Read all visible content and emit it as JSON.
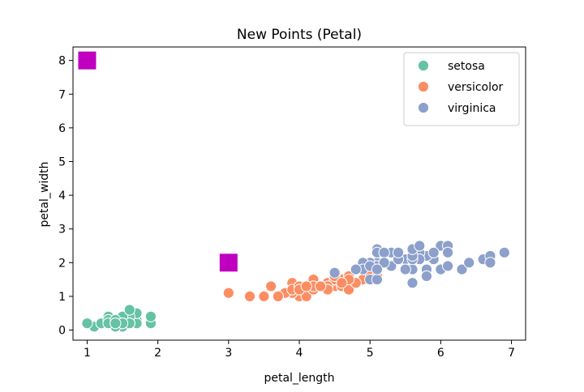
{
  "chart_data": {
    "type": "scatter",
    "title": "New Points (Petal)",
    "xlabel": "petal_length",
    "ylabel": "petal_width",
    "xlim": [
      0.8,
      7.2
    ],
    "ylim": [
      -0.3,
      8.4
    ],
    "xticks": [
      1,
      2,
      3,
      4,
      5,
      6,
      7
    ],
    "yticks": [
      0,
      1,
      2,
      3,
      4,
      5,
      6,
      7,
      8
    ],
    "grid": false,
    "legend_position": "top-right",
    "series": [
      {
        "name": "setosa",
        "color": "#66c2a5",
        "marker": "circle",
        "points": [
          [
            1.4,
            0.2
          ],
          [
            1.4,
            0.2
          ],
          [
            1.3,
            0.2
          ],
          [
            1.5,
            0.2
          ],
          [
            1.4,
            0.2
          ],
          [
            1.7,
            0.4
          ],
          [
            1.4,
            0.3
          ],
          [
            1.5,
            0.2
          ],
          [
            1.4,
            0.2
          ],
          [
            1.5,
            0.1
          ],
          [
            1.5,
            0.2
          ],
          [
            1.6,
            0.2
          ],
          [
            1.4,
            0.1
          ],
          [
            1.1,
            0.1
          ],
          [
            1.2,
            0.2
          ],
          [
            1.5,
            0.4
          ],
          [
            1.3,
            0.4
          ],
          [
            1.4,
            0.3
          ],
          [
            1.7,
            0.3
          ],
          [
            1.5,
            0.3
          ],
          [
            1.7,
            0.2
          ],
          [
            1.5,
            0.4
          ],
          [
            1.0,
            0.2
          ],
          [
            1.7,
            0.5
          ],
          [
            1.9,
            0.2
          ],
          [
            1.6,
            0.2
          ],
          [
            1.6,
            0.4
          ],
          [
            1.5,
            0.2
          ],
          [
            1.4,
            0.2
          ],
          [
            1.6,
            0.2
          ],
          [
            1.6,
            0.2
          ],
          [
            1.5,
            0.4
          ],
          [
            1.5,
            0.1
          ],
          [
            1.4,
            0.2
          ],
          [
            1.5,
            0.2
          ],
          [
            1.2,
            0.2
          ],
          [
            1.3,
            0.2
          ],
          [
            1.4,
            0.1
          ],
          [
            1.3,
            0.2
          ],
          [
            1.5,
            0.2
          ],
          [
            1.3,
            0.3
          ],
          [
            1.3,
            0.3
          ],
          [
            1.3,
            0.2
          ],
          [
            1.6,
            0.6
          ],
          [
            1.9,
            0.4
          ],
          [
            1.4,
            0.3
          ],
          [
            1.6,
            0.2
          ],
          [
            1.4,
            0.2
          ],
          [
            1.5,
            0.2
          ],
          [
            1.4,
            0.2
          ]
        ]
      },
      {
        "name": "versicolor",
        "color": "#fc8d62",
        "marker": "circle",
        "points": [
          [
            4.7,
            1.4
          ],
          [
            4.5,
            1.5
          ],
          [
            4.9,
            1.5
          ],
          [
            4.0,
            1.3
          ],
          [
            4.6,
            1.5
          ],
          [
            4.5,
            1.3
          ],
          [
            4.7,
            1.6
          ],
          [
            3.3,
            1.0
          ],
          [
            4.6,
            1.3
          ],
          [
            3.9,
            1.4
          ],
          [
            3.5,
            1.0
          ],
          [
            4.2,
            1.5
          ],
          [
            4.0,
            1.0
          ],
          [
            4.7,
            1.4
          ],
          [
            3.6,
            1.3
          ],
          [
            4.4,
            1.4
          ],
          [
            4.5,
            1.5
          ],
          [
            4.1,
            1.0
          ],
          [
            4.5,
            1.5
          ],
          [
            3.9,
            1.1
          ],
          [
            4.8,
            1.8
          ],
          [
            4.0,
            1.3
          ],
          [
            4.9,
            1.5
          ],
          [
            4.7,
            1.2
          ],
          [
            4.3,
            1.3
          ],
          [
            4.4,
            1.4
          ],
          [
            4.8,
            1.4
          ],
          [
            5.0,
            1.7
          ],
          [
            4.5,
            1.5
          ],
          [
            3.5,
            1.0
          ],
          [
            3.8,
            1.1
          ],
          [
            3.7,
            1.0
          ],
          [
            3.9,
            1.2
          ],
          [
            5.1,
            1.6
          ],
          [
            4.5,
            1.5
          ],
          [
            4.5,
            1.6
          ],
          [
            4.7,
            1.5
          ],
          [
            4.4,
            1.3
          ],
          [
            4.1,
            1.3
          ],
          [
            4.0,
            1.3
          ],
          [
            4.4,
            1.2
          ],
          [
            4.6,
            1.4
          ],
          [
            4.0,
            1.2
          ],
          [
            3.3,
            1.0
          ],
          [
            4.2,
            1.3
          ],
          [
            4.2,
            1.2
          ],
          [
            4.2,
            1.3
          ],
          [
            4.3,
            1.3
          ],
          [
            3.0,
            1.1
          ],
          [
            4.1,
            1.3
          ]
        ]
      },
      {
        "name": "virginica",
        "color": "#8da0cb",
        "marker": "circle",
        "points": [
          [
            6.0,
            2.5
          ],
          [
            5.1,
            1.9
          ],
          [
            5.9,
            2.1
          ],
          [
            5.6,
            1.8
          ],
          [
            5.8,
            2.2
          ],
          [
            6.6,
            2.1
          ],
          [
            4.5,
            1.7
          ],
          [
            6.3,
            1.8
          ],
          [
            5.8,
            1.8
          ],
          [
            6.1,
            2.5
          ],
          [
            5.1,
            2.0
          ],
          [
            5.3,
            1.9
          ],
          [
            5.5,
            2.1
          ],
          [
            5.0,
            2.0
          ],
          [
            5.1,
            2.4
          ],
          [
            5.3,
            2.3
          ],
          [
            5.5,
            1.8
          ],
          [
            6.7,
            2.2
          ],
          [
            6.9,
            2.3
          ],
          [
            5.0,
            1.5
          ],
          [
            5.7,
            2.3
          ],
          [
            4.9,
            2.0
          ],
          [
            6.7,
            2.0
          ],
          [
            4.9,
            1.8
          ],
          [
            5.7,
            2.1
          ],
          [
            6.0,
            1.8
          ],
          [
            4.8,
            1.8
          ],
          [
            4.9,
            1.8
          ],
          [
            5.6,
            2.1
          ],
          [
            5.8,
            1.6
          ],
          [
            6.1,
            1.9
          ],
          [
            6.4,
            2.0
          ],
          [
            5.6,
            2.2
          ],
          [
            5.1,
            1.5
          ],
          [
            5.6,
            1.4
          ],
          [
            6.1,
            2.3
          ],
          [
            5.6,
            2.4
          ],
          [
            5.5,
            1.8
          ],
          [
            4.8,
            1.8
          ],
          [
            5.4,
            2.1
          ],
          [
            5.6,
            2.4
          ],
          [
            5.1,
            2.3
          ],
          [
            5.1,
            1.9
          ],
          [
            5.9,
            2.3
          ],
          [
            5.7,
            2.5
          ],
          [
            5.2,
            2.3
          ],
          [
            5.0,
            1.9
          ],
          [
            5.2,
            2.0
          ],
          [
            5.4,
            2.3
          ],
          [
            5.1,
            1.8
          ]
        ]
      },
      {
        "color": "#bf00bf",
        "marker": "square",
        "points": [
          [
            1.0,
            8.0
          ],
          [
            3.0,
            2.0
          ]
        ]
      }
    ]
  }
}
